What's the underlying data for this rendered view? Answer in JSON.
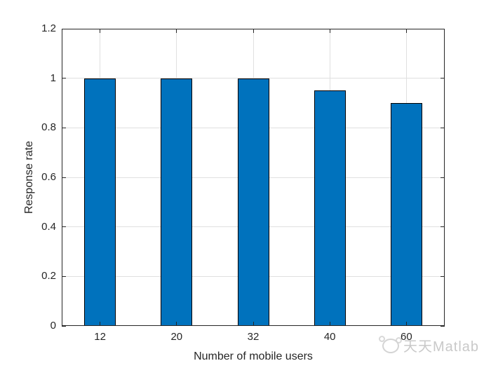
{
  "figure": {
    "background": "#ffffff"
  },
  "chart_data": {
    "type": "bar",
    "title": "",
    "categories": [
      "12",
      "20",
      "32",
      "40",
      "60"
    ],
    "values": [
      1,
      1,
      1,
      0.95,
      0.9
    ],
    "xlabel": "Number of mobile users",
    "ylabel": "Response rate",
    "ylim": [
      0,
      1.2
    ],
    "yticks": [
      0,
      0.2,
      0.4,
      0.6,
      0.8,
      1,
      1.2
    ],
    "ytick_labels": [
      "0",
      "0.2",
      "0.4",
      "0.6",
      "0.8",
      "1",
      "1.2"
    ],
    "grid": true,
    "legend": null,
    "bar_width_ratio": 0.41,
    "bar_color": "#0072BD",
    "bar_edge_color": "#000000",
    "grid_color": "#e0e0e0",
    "axis_color": "#262626",
    "text_color": "#262626"
  },
  "watermark": {
    "icon": "panda-face-icon",
    "text": "天天Matlab",
    "color": "#c9c9c9"
  }
}
